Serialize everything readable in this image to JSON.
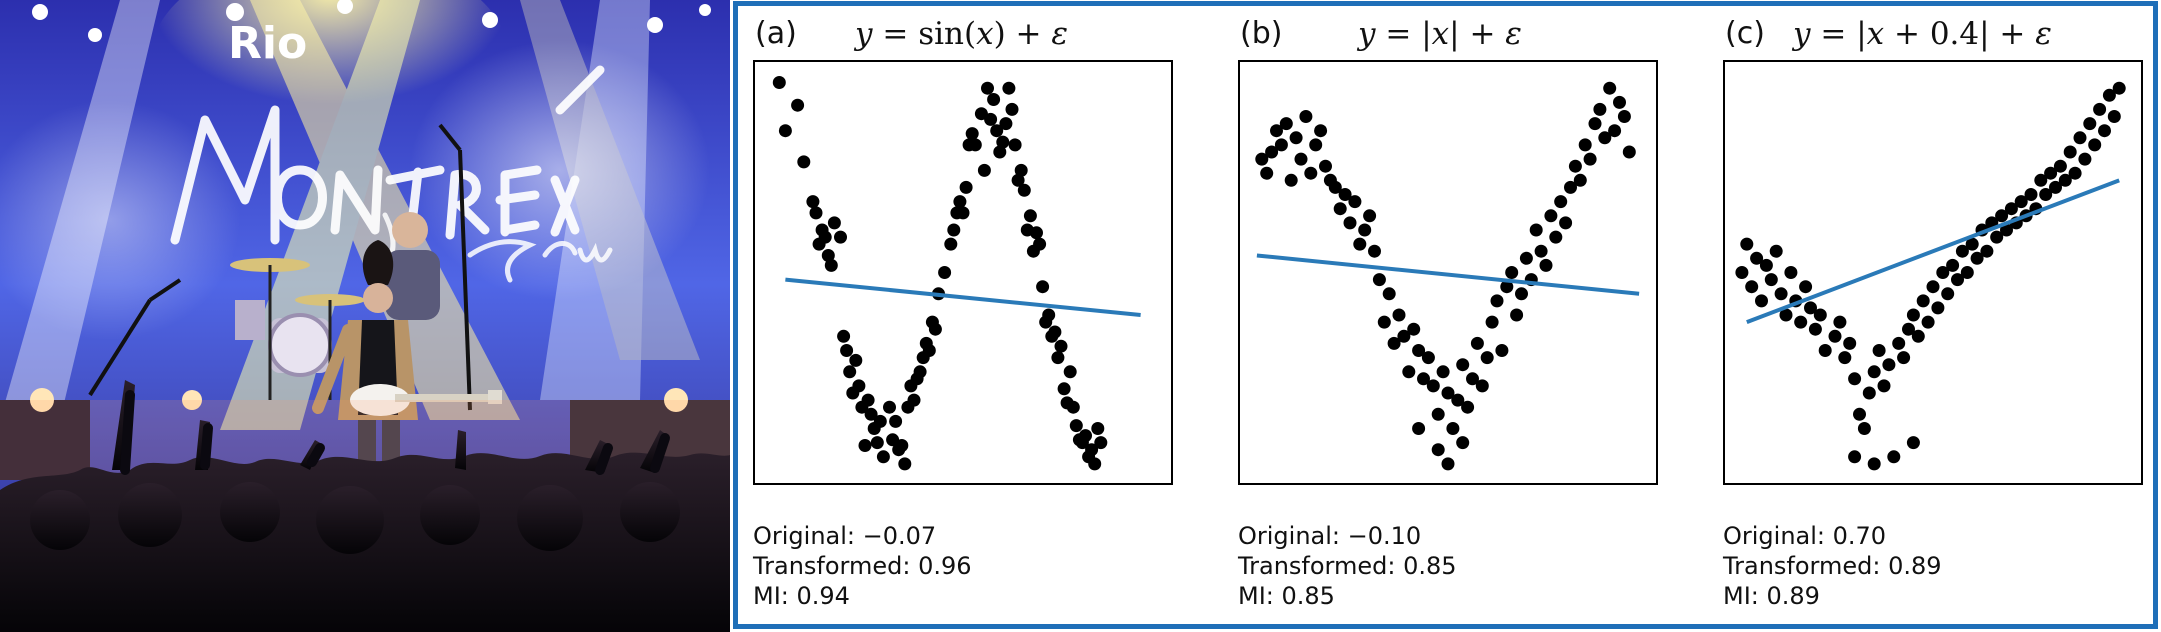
{
  "photo": {
    "sign_text": "Rio",
    "colors": {
      "stage_blue": "#3d4fd8",
      "light_yellow": "#f5e36a",
      "crowd": "#0c0a10"
    }
  },
  "figure": {
    "border_color": "#1f6fb8",
    "fit_color": "#2a7ab8",
    "dot_color": "#000000"
  },
  "chart_data": [
    {
      "type": "scatter",
      "panel_label": "(a)",
      "equation": {
        "lhs": "y",
        "eq": " = ",
        "func": "sin",
        "open": "(",
        "var": "x",
        "close": ")",
        "plus": " + ",
        "eps": "ε"
      },
      "stats": {
        "original": "Original: −0.07",
        "transformed": "Transformed: 0.96",
        "mi": "MI: 0.94"
      },
      "xlim": [
        -3.2,
        3.2
      ],
      "ylim": [
        -1.4,
        1.4
      ],
      "fit_line": {
        "x": [
          -2.9,
          2.9
        ],
        "y": [
          -0.05,
          -0.3
        ]
      },
      "points": [
        [
          -3.0,
          1.34
        ],
        [
          -2.9,
          1.0
        ],
        [
          -2.7,
          1.18
        ],
        [
          -2.6,
          0.78
        ],
        [
          -2.45,
          0.5
        ],
        [
          -2.4,
          0.42
        ],
        [
          -2.35,
          0.2
        ],
        [
          -2.3,
          0.3
        ],
        [
          -2.25,
          0.25
        ],
        [
          -2.2,
          0.12
        ],
        [
          -2.15,
          0.05
        ],
        [
          -2.1,
          0.35
        ],
        [
          -2.0,
          0.25
        ],
        [
          -1.95,
          -0.45
        ],
        [
          -1.9,
          -0.55
        ],
        [
          -1.85,
          -0.7
        ],
        [
          -1.8,
          -0.85
        ],
        [
          -1.75,
          -0.62
        ],
        [
          -1.7,
          -0.8
        ],
        [
          -1.65,
          -0.95
        ],
        [
          -1.6,
          -1.22
        ],
        [
          -1.55,
          -0.9
        ],
        [
          -1.5,
          -1.0
        ],
        [
          -1.45,
          -1.1
        ],
        [
          -1.4,
          -1.2
        ],
        [
          -1.35,
          -1.05
        ],
        [
          -1.3,
          -1.3
        ],
        [
          -1.2,
          -0.95
        ],
        [
          -1.15,
          -1.18
        ],
        [
          -1.1,
          -1.05
        ],
        [
          -1.05,
          -1.25
        ],
        [
          -1.0,
          -1.22
        ],
        [
          -0.95,
          -1.35
        ],
        [
          -0.9,
          -0.95
        ],
        [
          -0.85,
          -0.8
        ],
        [
          -0.8,
          -0.9
        ],
        [
          -0.75,
          -0.75
        ],
        [
          -0.7,
          -0.7
        ],
        [
          -0.65,
          -0.6
        ],
        [
          -0.6,
          -0.5
        ],
        [
          -0.55,
          -0.55
        ],
        [
          -0.5,
          -0.35
        ],
        [
          -0.45,
          -0.4
        ],
        [
          -0.4,
          -0.15
        ],
        [
          -0.3,
          0.0
        ],
        [
          -0.2,
          0.2
        ],
        [
          -0.15,
          0.3
        ],
        [
          -0.1,
          0.42
        ],
        [
          -0.05,
          0.5
        ],
        [
          0.0,
          0.42
        ],
        [
          0.05,
          0.6
        ],
        [
          0.1,
          0.9
        ],
        [
          0.15,
          0.98
        ],
        [
          0.2,
          0.9
        ],
        [
          0.3,
          1.12
        ],
        [
          0.35,
          0.72
        ],
        [
          0.4,
          1.3
        ],
        [
          0.45,
          1.08
        ],
        [
          0.5,
          1.22
        ],
        [
          0.55,
          1.0
        ],
        [
          0.6,
          0.85
        ],
        [
          0.65,
          0.92
        ],
        [
          0.7,
          1.05
        ],
        [
          0.75,
          1.3
        ],
        [
          0.8,
          1.15
        ],
        [
          0.85,
          0.9
        ],
        [
          0.9,
          0.65
        ],
        [
          0.95,
          0.72
        ],
        [
          1.0,
          0.58
        ],
        [
          1.05,
          0.3
        ],
        [
          1.1,
          0.4
        ],
        [
          1.15,
          0.15
        ],
        [
          1.2,
          0.28
        ],
        [
          1.25,
          0.2
        ],
        [
          1.3,
          -0.1
        ],
        [
          1.35,
          -0.35
        ],
        [
          1.4,
          -0.3
        ],
        [
          1.45,
          -0.45
        ],
        [
          1.5,
          -0.42
        ],
        [
          1.55,
          -0.6
        ],
        [
          1.6,
          -0.52
        ],
        [
          1.65,
          -0.82
        ],
        [
          1.7,
          -0.92
        ],
        [
          1.75,
          -0.7
        ],
        [
          1.8,
          -0.95
        ],
        [
          1.85,
          -1.08
        ],
        [
          1.9,
          -1.18
        ],
        [
          1.95,
          -1.2
        ],
        [
          2.0,
          -1.15
        ],
        [
          2.05,
          -1.3
        ],
        [
          2.1,
          -1.25
        ],
        [
          2.15,
          -1.35
        ],
        [
          2.2,
          -1.1
        ],
        [
          2.25,
          -1.2
        ]
      ]
    },
    {
      "type": "scatter",
      "panel_label": "(b)",
      "equation": {
        "lhs": "y",
        "eq": " = ",
        "bar_l": "|",
        "var": "x",
        "bar_r": "|",
        "plus": " + ",
        "eps": "ε"
      },
      "stats": {
        "original": "Original: −0.10",
        "transformed": "Transformed: 0.85",
        "mi": "MI: 0.85"
      },
      "xlim": [
        -2.0,
        2.0
      ],
      "ylim": [
        -0.5,
        2.3
      ],
      "fit_line": {
        "x": [
          -1.95,
          1.95
        ],
        "y": [
          1.02,
          0.75
        ]
      },
      "points": [
        [
          -1.9,
          1.7
        ],
        [
          -1.85,
          1.6
        ],
        [
          -1.8,
          1.75
        ],
        [
          -1.75,
          1.9
        ],
        [
          -1.7,
          1.8
        ],
        [
          -1.65,
          1.95
        ],
        [
          -1.6,
          1.55
        ],
        [
          -1.55,
          1.85
        ],
        [
          -1.5,
          1.7
        ],
        [
          -1.45,
          2.0
        ],
        [
          -1.4,
          1.6
        ],
        [
          -1.35,
          1.8
        ],
        [
          -1.3,
          1.9
        ],
        [
          -1.25,
          1.65
        ],
        [
          -1.2,
          1.55
        ],
        [
          -1.15,
          1.5
        ],
        [
          -1.1,
          1.35
        ],
        [
          -1.05,
          1.45
        ],
        [
          -1.0,
          1.25
        ],
        [
          -0.95,
          1.4
        ],
        [
          -0.9,
          1.1
        ],
        [
          -0.85,
          1.2
        ],
        [
          -0.8,
          1.3
        ],
        [
          -0.75,
          1.05
        ],
        [
          -0.7,
          0.85
        ],
        [
          -0.65,
          0.55
        ],
        [
          -0.6,
          0.75
        ],
        [
          -0.55,
          0.4
        ],
        [
          -0.5,
          0.6
        ],
        [
          -0.45,
          0.45
        ],
        [
          -0.4,
          0.2
        ],
        [
          -0.35,
          0.5
        ],
        [
          -0.3,
          0.35
        ],
        [
          -0.25,
          0.15
        ],
        [
          -0.2,
          0.3
        ],
        [
          -0.15,
          0.1
        ],
        [
          -0.1,
          -0.1
        ],
        [
          -0.05,
          0.2
        ],
        [
          0.0,
          0.05
        ],
        [
          0.05,
          -0.2
        ],
        [
          0.1,
          0.0
        ],
        [
          0.15,
          0.25
        ],
        [
          0.2,
          -0.05
        ],
        [
          0.25,
          0.15
        ],
        [
          0.3,
          0.4
        ],
        [
          0.35,
          0.1
        ],
        [
          0.4,
          0.3
        ],
        [
          0.45,
          0.55
        ],
        [
          0.5,
          0.7
        ],
        [
          0.55,
          0.35
        ],
        [
          0.6,
          0.8
        ],
        [
          0.65,
          0.9
        ],
        [
          0.7,
          0.6
        ],
        [
          0.75,
          0.75
        ],
        [
          0.8,
          1.0
        ],
        [
          0.85,
          0.85
        ],
        [
          0.9,
          1.2
        ],
        [
          0.95,
          1.05
        ],
        [
          1.0,
          0.95
        ],
        [
          1.05,
          1.3
        ],
        [
          1.1,
          1.15
        ],
        [
          1.15,
          1.4
        ],
        [
          1.2,
          1.25
        ],
        [
          1.25,
          1.5
        ],
        [
          1.3,
          1.65
        ],
        [
          1.35,
          1.55
        ],
        [
          1.4,
          1.8
        ],
        [
          1.45,
          1.7
        ],
        [
          1.5,
          1.95
        ],
        [
          1.55,
          2.05
        ],
        [
          1.6,
          1.85
        ],
        [
          1.65,
          2.2
        ],
        [
          1.7,
          1.9
        ],
        [
          1.75,
          2.1
        ],
        [
          1.8,
          2.0
        ],
        [
          1.85,
          1.75
        ],
        [
          -0.3,
          -0.2
        ],
        [
          -0.1,
          -0.35
        ],
        [
          0.0,
          -0.45
        ],
        [
          0.15,
          -0.3
        ]
      ]
    },
    {
      "type": "scatter",
      "panel_label": "(c)",
      "equation": {
        "lhs": "y",
        "eq": " = ",
        "bar_l": "|",
        "var": "x",
        "shift": " + 0.4",
        "bar_r": "|",
        "plus": " + ",
        "eps": "ε"
      },
      "stats": {
        "original": "Original: 0.70",
        "transformed": "Transformed: 0.89",
        "mi": "MI: 0.89"
      },
      "xlim": [
        -2.0,
        2.0
      ],
      "ylim": [
        -0.5,
        2.3
      ],
      "fit_line": {
        "x": [
          -1.9,
          1.9
        ],
        "y": [
          0.55,
          1.55
        ]
      },
      "points": [
        [
          -1.95,
          0.9
        ],
        [
          -1.9,
          1.1
        ],
        [
          -1.85,
          0.8
        ],
        [
          -1.8,
          1.0
        ],
        [
          -1.75,
          0.7
        ],
        [
          -1.7,
          0.95
        ],
        [
          -1.65,
          0.85
        ],
        [
          -1.6,
          1.05
        ],
        [
          -1.55,
          0.75
        ],
        [
          -1.5,
          0.6
        ],
        [
          -1.45,
          0.9
        ],
        [
          -1.4,
          0.7
        ],
        [
          -1.35,
          0.55
        ],
        [
          -1.3,
          0.8
        ],
        [
          -1.25,
          0.65
        ],
        [
          -1.2,
          0.5
        ],
        [
          -1.15,
          0.6
        ],
        [
          -1.1,
          0.35
        ],
        [
          -1.0,
          0.45
        ],
        [
          -0.95,
          0.55
        ],
        [
          -0.9,
          0.3
        ],
        [
          -0.85,
          0.4
        ],
        [
          -0.8,
          0.15
        ],
        [
          -0.75,
          -0.1
        ],
        [
          -0.7,
          -0.2
        ],
        [
          -0.65,
          0.05
        ],
        [
          -0.6,
          0.2
        ],
        [
          -0.55,
          0.35
        ],
        [
          -0.5,
          0.1
        ],
        [
          -0.45,
          0.25
        ],
        [
          -0.4,
          -0.4
        ],
        [
          -0.35,
          0.4
        ],
        [
          -0.3,
          0.3
        ],
        [
          -0.25,
          0.5
        ],
        [
          -0.2,
          0.6
        ],
        [
          -0.15,
          0.45
        ],
        [
          -0.1,
          0.7
        ],
        [
          -0.05,
          0.55
        ],
        [
          0.0,
          0.8
        ],
        [
          0.05,
          0.65
        ],
        [
          0.1,
          0.9
        ],
        [
          0.15,
          0.75
        ],
        [
          0.2,
          0.95
        ],
        [
          0.25,
          0.85
        ],
        [
          0.3,
          1.05
        ],
        [
          0.35,
          0.9
        ],
        [
          0.4,
          1.1
        ],
        [
          0.45,
          1.0
        ],
        [
          0.5,
          1.2
        ],
        [
          0.55,
          1.05
        ],
        [
          0.6,
          1.25
        ],
        [
          0.65,
          1.15
        ],
        [
          0.7,
          1.3
        ],
        [
          0.75,
          1.2
        ],
        [
          0.8,
          1.35
        ],
        [
          0.85,
          1.25
        ],
        [
          0.9,
          1.4
        ],
        [
          0.95,
          1.3
        ],
        [
          1.0,
          1.45
        ],
        [
          1.05,
          1.35
        ],
        [
          1.1,
          1.55
        ],
        [
          1.15,
          1.45
        ],
        [
          1.2,
          1.6
        ],
        [
          1.25,
          1.5
        ],
        [
          1.3,
          1.65
        ],
        [
          1.35,
          1.55
        ],
        [
          1.4,
          1.75
        ],
        [
          1.45,
          1.6
        ],
        [
          1.5,
          1.85
        ],
        [
          1.55,
          1.7
        ],
        [
          1.6,
          1.95
        ],
        [
          1.65,
          1.8
        ],
        [
          1.7,
          2.05
        ],
        [
          1.75,
          1.9
        ],
        [
          1.8,
          2.15
        ],
        [
          1.85,
          2.0
        ],
        [
          1.9,
          2.2
        ],
        [
          -0.8,
          -0.4
        ],
        [
          -0.6,
          -0.45
        ],
        [
          -0.2,
          -0.3
        ]
      ]
    }
  ]
}
